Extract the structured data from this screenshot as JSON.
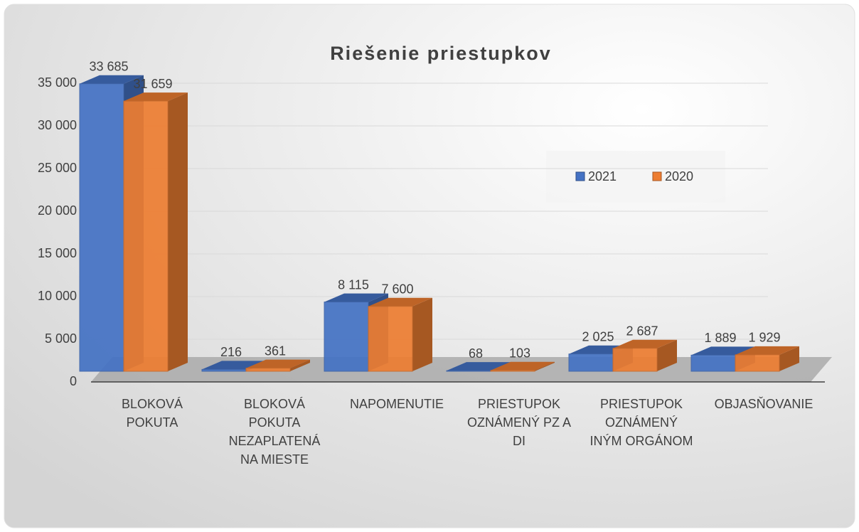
{
  "chart_data": {
    "type": "bar",
    "title": "Riešenie priestupkov",
    "categories": [
      "BLOKOVÁ POKUTA",
      "BLOKOVÁ POKUTA NEZAPLATENÁ NA MIESTE",
      "NAPOMENUTIE",
      "PRIESTUPOK OZNÁMENÝ PZ A DI",
      "PRIESTUPOK OZNÁMENÝ INÝM ORGÁNOM",
      "OBJASŇOVANIE"
    ],
    "series": [
      {
        "name": "2021",
        "color": "#4472c4",
        "values": [
          33685,
          216,
          8115,
          68,
          2025,
          1889
        ],
        "value_labels": [
          "33 685",
          "216",
          "8 115",
          "68",
          "2 025",
          "1 889"
        ]
      },
      {
        "name": "2020",
        "color": "#ed7d31",
        "values": [
          31659,
          361,
          7600,
          103,
          2687,
          1929
        ],
        "value_labels": [
          "31 659",
          "361",
          "7 600",
          "103",
          "2 687",
          "1 929"
        ]
      }
    ],
    "ylim": [
      0,
      35000
    ],
    "yticks": [
      0,
      {
        "value": 5000,
        "label": "5 000"
      },
      {
        "value": 10000,
        "label": "10 000"
      },
      {
        "value": 15000,
        "label": "15 000"
      },
      {
        "value": 20000,
        "label": "20 000"
      },
      {
        "value": 25000,
        "label": "25 000"
      },
      {
        "value": 30000,
        "label": "30 000"
      },
      {
        "value": 35000,
        "label": "35 000"
      }
    ],
    "grid": true,
    "legend": "right"
  }
}
